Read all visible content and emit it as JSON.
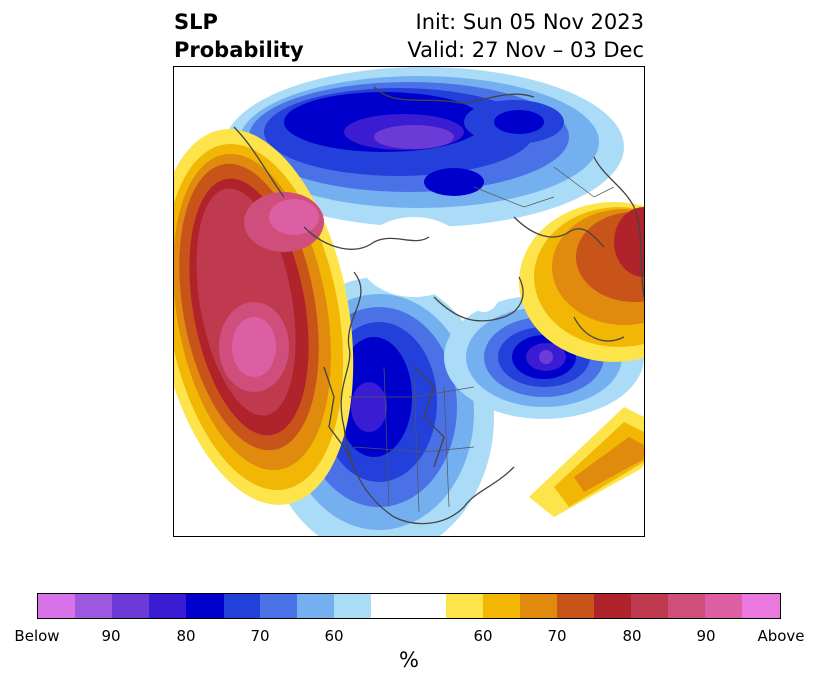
{
  "header": {
    "title_line1": "SLP",
    "title_line2": "Probability",
    "init_text": "Init: Sun 05 Nov 2023",
    "valid_text": "Valid: 27 Nov – 03 Dec"
  },
  "colorbar": {
    "colors": [
      "#d772e8",
      "#9d58e0",
      "#6c3ad6",
      "#3a1dd3",
      "#0000cc",
      "#2340db",
      "#4a72e6",
      "#74aff0",
      "#aadcf8",
      "#ffffff",
      "#fde44a",
      "#f2b705",
      "#e08a0e",
      "#c85419",
      "#b0232a",
      "#c03a4f",
      "#cf4e7c",
      "#dd5fa3",
      "#ea78de"
    ],
    "ticks": [
      "Below",
      "90",
      "80",
      "70",
      "60",
      "60",
      "70",
      "80",
      "90",
      "Above"
    ],
    "label": "%"
  },
  "map": {
    "features": [
      "above-normal-center-north-pacific",
      "above-normal-center-alaska",
      "above-normal-center-north-atlantic",
      "below-normal-center-north-atlantic",
      "below-normal-center-north-america",
      "below-normal-center-siberia-arctic"
    ]
  }
}
